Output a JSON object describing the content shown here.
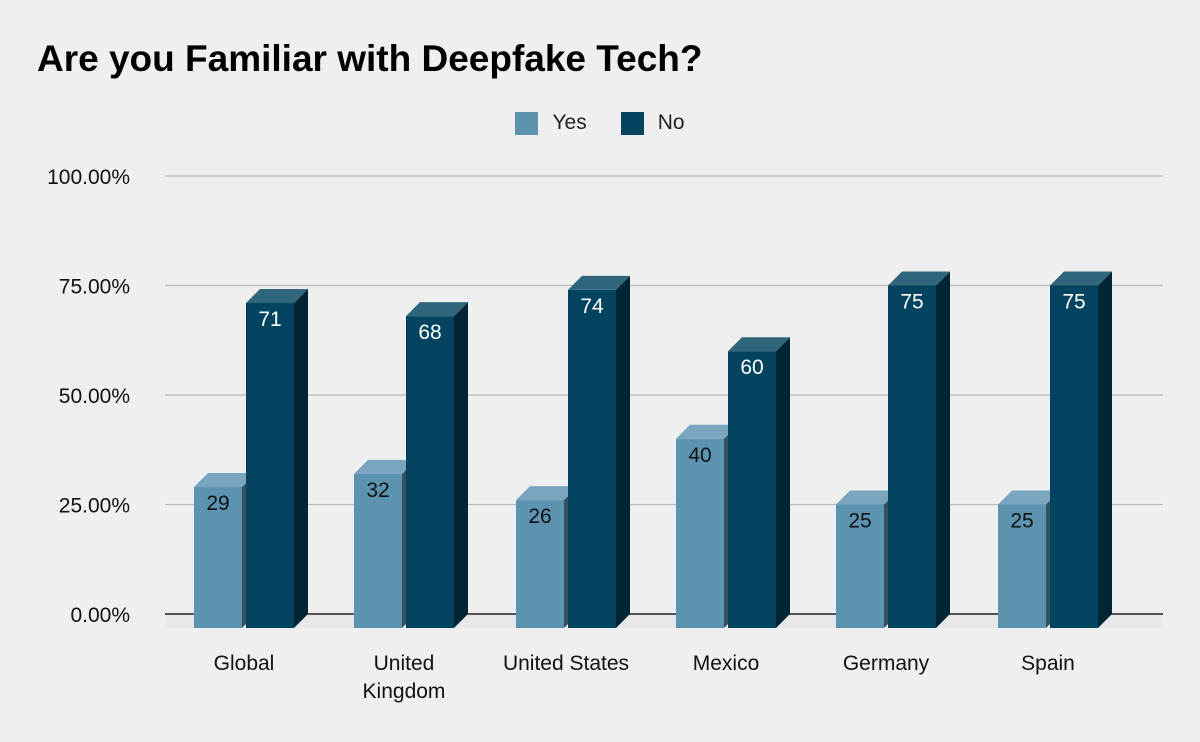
{
  "chart_data": {
    "type": "bar",
    "title": "Are you Familiar with Deepfake Tech?",
    "categories": [
      "Global",
      "United Kingdom",
      "United States",
      "Mexico",
      "Germany",
      "Spain"
    ],
    "category_labels": [
      [
        "Global"
      ],
      [
        "United",
        "Kingdom"
      ],
      [
        "United States"
      ],
      [
        "Mexico"
      ],
      [
        "Germany"
      ],
      [
        "Spain"
      ]
    ],
    "series": [
      {
        "name": "Yes",
        "values": [
          29,
          32,
          26,
          40,
          25,
          25
        ],
        "color": "#5b93b0"
      },
      {
        "name": "No",
        "values": [
          71,
          68,
          74,
          60,
          75,
          75
        ],
        "color": "#02445f"
      }
    ],
    "ylim": [
      0,
      100
    ],
    "yticks": [
      0,
      25,
      50,
      75,
      100
    ],
    "ytick_labels": [
      "0.00%",
      "25.00%",
      "50.00%",
      "75.00%",
      "100.00%"
    ],
    "legend_position": "top-center",
    "grid": true,
    "xlabel": "",
    "ylabel": ""
  }
}
